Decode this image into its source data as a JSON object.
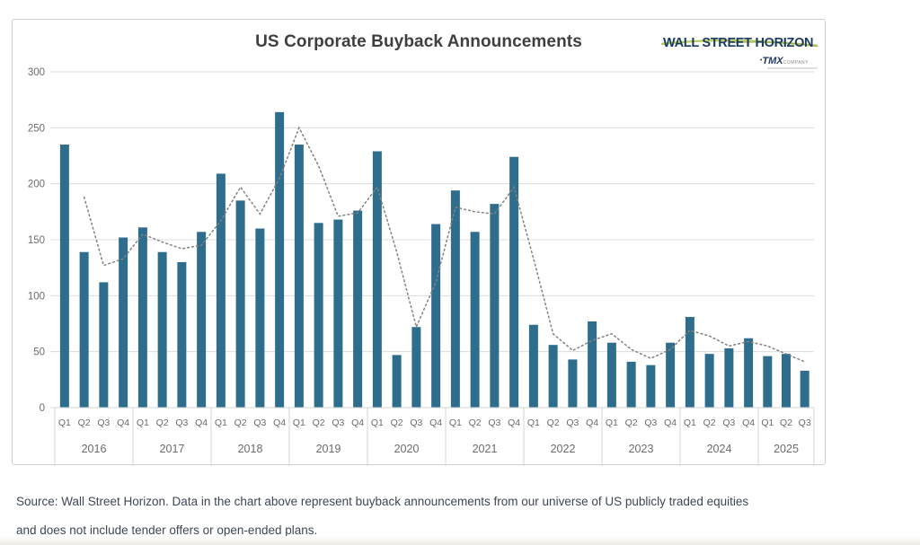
{
  "title": "US Corporate Buyback Announcements",
  "logo": {
    "brand": "WALL STREET HORIZON",
    "tmx_bullet": "•",
    "tmx": "TMX",
    "company": "COMPANY"
  },
  "source_note": {
    "line1": "Source: Wall Street Horizon. Data in the chart above represent buyback announcements from our universe of US publicly traded equities",
    "line2": "and does not include tender offers or open-ended plans."
  },
  "colors": {
    "bar": "#2e6d8c",
    "trend_line": "#828282",
    "grid": "#dcdcdc",
    "axis_box": "#d6d6d6",
    "axis_text": "#6b6b6b",
    "title_text": "#3f3f3f",
    "logo_navy": "#1b3a5f",
    "logo_green": "#b2c94f",
    "note_text": "#3e4757",
    "card_border": "#cfcfcf"
  },
  "chart_data": {
    "type": "bar",
    "title": "US Corporate Buyback Announcements",
    "xlabel": "",
    "ylabel": "",
    "ylim": [
      0,
      300
    ],
    "yticks": [
      0,
      50,
      100,
      150,
      200,
      250,
      300
    ],
    "grid": true,
    "legend_position": "none",
    "series_info": {
      "bars": "Quarterly US corporate buyback announcements (count)",
      "trend": "Dotted trend line (approximate values read from chart)"
    },
    "groups": [
      {
        "year": "2016",
        "quarters": [
          "Q1",
          "Q2",
          "Q3",
          "Q4"
        ],
        "bars": [
          235,
          139,
          112,
          152
        ],
        "trend": [
          null,
          188,
          127,
          133
        ]
      },
      {
        "year": "2017",
        "quarters": [
          "Q1",
          "Q2",
          "Q3",
          "Q4"
        ],
        "bars": [
          161,
          139,
          130,
          157
        ],
        "trend": [
          155,
          148,
          142,
          145
        ]
      },
      {
        "year": "2018",
        "quarters": [
          "Q1",
          "Q2",
          "Q3",
          "Q4"
        ],
        "bars": [
          209,
          185,
          160,
          264
        ],
        "trend": [
          167,
          197,
          173,
          205
        ]
      },
      {
        "year": "2019",
        "quarters": [
          "Q1",
          "Q2",
          "Q3",
          "Q4"
        ],
        "bars": [
          235,
          165,
          168,
          176
        ],
        "trend": [
          250,
          216,
          171,
          174
        ]
      },
      {
        "year": "2020",
        "quarters": [
          "Q1",
          "Q2",
          "Q3",
          "Q4"
        ],
        "bars": [
          229,
          47,
          72,
          164
        ],
        "trend": [
          197,
          139,
          72,
          112
        ]
      },
      {
        "year": "2021",
        "quarters": [
          "Q1",
          "Q2",
          "Q3",
          "Q4"
        ],
        "bars": [
          194,
          157,
          182,
          224
        ],
        "trend": [
          179,
          175,
          173,
          197
        ]
      },
      {
        "year": "2022",
        "quarters": [
          "Q1",
          "Q2",
          "Q3",
          "Q4"
        ],
        "bars": [
          74,
          56,
          43,
          77
        ],
        "trend": [
          133,
          66,
          51,
          60
        ]
      },
      {
        "year": "2023",
        "quarters": [
          "Q1",
          "Q2",
          "Q3",
          "Q4"
        ],
        "bars": [
          58,
          41,
          38,
          58
        ],
        "trend": [
          66,
          52,
          44,
          52
        ]
      },
      {
        "year": "2024",
        "quarters": [
          "Q1",
          "Q2",
          "Q3",
          "Q4"
        ],
        "bars": [
          81,
          48,
          53,
          62
        ],
        "trend": [
          69,
          64,
          55,
          59
        ]
      },
      {
        "year": "2025",
        "quarters": [
          "Q1",
          "Q2",
          "Q3"
        ],
        "bars": [
          46,
          48,
          33
        ],
        "trend": [
          55,
          48,
          41
        ]
      }
    ]
  }
}
